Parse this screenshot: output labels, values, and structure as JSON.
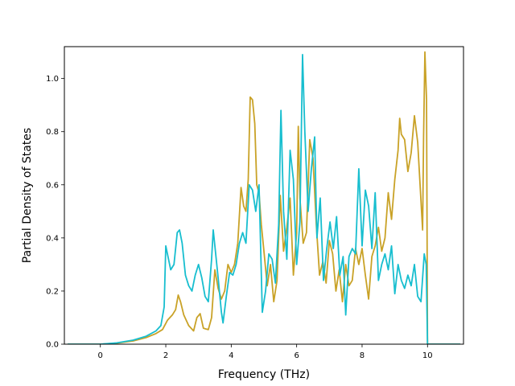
{
  "chart_data": {
    "type": "line",
    "title": "",
    "xlabel": "Frequency (THz)",
    "ylabel": "Partial Density of States",
    "xlim": [
      -1.1,
      11.1
    ],
    "ylim": [
      0.0,
      1.12
    ],
    "xticks": [
      0,
      2,
      4,
      6,
      8,
      10
    ],
    "yticks": [
      0.0,
      0.2,
      0.4,
      0.6,
      0.8,
      1.0
    ],
    "xtick_labels": [
      "0",
      "2",
      "4",
      "6",
      "8",
      "10"
    ],
    "ytick_labels": [
      "0.0",
      "0.2",
      "0.4",
      "0.6",
      "0.8",
      "1.0"
    ],
    "grid": false,
    "legend": "none",
    "series": [
      {
        "color": "#c9a227",
        "points": [
          [
            -1.0,
            0.0
          ],
          [
            0.0,
            0.0
          ],
          [
            0.5,
            0.004
          ],
          [
            1.0,
            0.012
          ],
          [
            1.4,
            0.025
          ],
          [
            1.7,
            0.04
          ],
          [
            1.9,
            0.055
          ],
          [
            2.05,
            0.09
          ],
          [
            2.2,
            0.11
          ],
          [
            2.3,
            0.13
          ],
          [
            2.38,
            0.185
          ],
          [
            2.45,
            0.16
          ],
          [
            2.55,
            0.11
          ],
          [
            2.7,
            0.07
          ],
          [
            2.85,
            0.05
          ],
          [
            2.95,
            0.1
          ],
          [
            3.05,
            0.115
          ],
          [
            3.15,
            0.06
          ],
          [
            3.3,
            0.055
          ],
          [
            3.4,
            0.1
          ],
          [
            3.5,
            0.28
          ],
          [
            3.6,
            0.21
          ],
          [
            3.7,
            0.17
          ],
          [
            3.8,
            0.2
          ],
          [
            3.9,
            0.3
          ],
          [
            4.0,
            0.27
          ],
          [
            4.1,
            0.3
          ],
          [
            4.2,
            0.38
          ],
          [
            4.3,
            0.59
          ],
          [
            4.38,
            0.52
          ],
          [
            4.45,
            0.5
          ],
          [
            4.52,
            0.62
          ],
          [
            4.58,
            0.93
          ],
          [
            4.65,
            0.92
          ],
          [
            4.72,
            0.83
          ],
          [
            4.78,
            0.6
          ],
          [
            4.85,
            0.57
          ],
          [
            4.92,
            0.45
          ],
          [
            5.0,
            0.35
          ],
          [
            5.1,
            0.22
          ],
          [
            5.2,
            0.3
          ],
          [
            5.3,
            0.16
          ],
          [
            5.4,
            0.24
          ],
          [
            5.5,
            0.56
          ],
          [
            5.6,
            0.35
          ],
          [
            5.7,
            0.44
          ],
          [
            5.8,
            0.55
          ],
          [
            5.9,
            0.26
          ],
          [
            6.0,
            0.42
          ],
          [
            6.05,
            0.82
          ],
          [
            6.1,
            0.55
          ],
          [
            6.2,
            0.38
          ],
          [
            6.3,
            0.42
          ],
          [
            6.4,
            0.77
          ],
          [
            6.5,
            0.7
          ],
          [
            6.6,
            0.45
          ],
          [
            6.7,
            0.26
          ],
          [
            6.8,
            0.31
          ],
          [
            6.9,
            0.23
          ],
          [
            7.0,
            0.39
          ],
          [
            7.1,
            0.34
          ],
          [
            7.2,
            0.2
          ],
          [
            7.3,
            0.28
          ],
          [
            7.4,
            0.16
          ],
          [
            7.5,
            0.3
          ],
          [
            7.6,
            0.22
          ],
          [
            7.7,
            0.24
          ],
          [
            7.8,
            0.36
          ],
          [
            7.9,
            0.3
          ],
          [
            8.0,
            0.36
          ],
          [
            8.1,
            0.26
          ],
          [
            8.2,
            0.17
          ],
          [
            8.3,
            0.33
          ],
          [
            8.4,
            0.37
          ],
          [
            8.5,
            0.44
          ],
          [
            8.6,
            0.35
          ],
          [
            8.7,
            0.4
          ],
          [
            8.8,
            0.57
          ],
          [
            8.9,
            0.47
          ],
          [
            9.0,
            0.62
          ],
          [
            9.1,
            0.73
          ],
          [
            9.15,
            0.85
          ],
          [
            9.2,
            0.79
          ],
          [
            9.3,
            0.77
          ],
          [
            9.4,
            0.65
          ],
          [
            9.5,
            0.72
          ],
          [
            9.6,
            0.86
          ],
          [
            9.7,
            0.76
          ],
          [
            9.8,
            0.54
          ],
          [
            9.85,
            0.43
          ],
          [
            9.88,
            0.78
          ],
          [
            9.92,
            1.1
          ],
          [
            9.97,
            0.92
          ],
          [
            10.0,
            0.0
          ],
          [
            10.2,
            0.0
          ],
          [
            11.0,
            0.0
          ]
        ]
      },
      {
        "color": "#17becf",
        "points": [
          [
            -1.0,
            0.0
          ],
          [
            0.0,
            0.0
          ],
          [
            0.5,
            0.005
          ],
          [
            1.0,
            0.015
          ],
          [
            1.4,
            0.03
          ],
          [
            1.7,
            0.05
          ],
          [
            1.85,
            0.07
          ],
          [
            1.95,
            0.14
          ],
          [
            2.0,
            0.37
          ],
          [
            2.05,
            0.34
          ],
          [
            2.15,
            0.28
          ],
          [
            2.25,
            0.3
          ],
          [
            2.35,
            0.42
          ],
          [
            2.42,
            0.43
          ],
          [
            2.5,
            0.38
          ],
          [
            2.6,
            0.26
          ],
          [
            2.7,
            0.22
          ],
          [
            2.8,
            0.2
          ],
          [
            2.9,
            0.26
          ],
          [
            3.0,
            0.3
          ],
          [
            3.1,
            0.25
          ],
          [
            3.2,
            0.18
          ],
          [
            3.3,
            0.16
          ],
          [
            3.4,
            0.32
          ],
          [
            3.45,
            0.43
          ],
          [
            3.5,
            0.37
          ],
          [
            3.6,
            0.25
          ],
          [
            3.7,
            0.12
          ],
          [
            3.75,
            0.08
          ],
          [
            3.85,
            0.18
          ],
          [
            3.95,
            0.27
          ],
          [
            4.05,
            0.26
          ],
          [
            4.15,
            0.3
          ],
          [
            4.25,
            0.38
          ],
          [
            4.35,
            0.42
          ],
          [
            4.45,
            0.38
          ],
          [
            4.55,
            0.6
          ],
          [
            4.65,
            0.58
          ],
          [
            4.75,
            0.5
          ],
          [
            4.85,
            0.6
          ],
          [
            4.95,
            0.12
          ],
          [
            5.05,
            0.2
          ],
          [
            5.15,
            0.34
          ],
          [
            5.25,
            0.32
          ],
          [
            5.35,
            0.23
          ],
          [
            5.45,
            0.45
          ],
          [
            5.52,
            0.88
          ],
          [
            5.6,
            0.5
          ],
          [
            5.7,
            0.32
          ],
          [
            5.8,
            0.73
          ],
          [
            5.9,
            0.62
          ],
          [
            6.0,
            0.3
          ],
          [
            6.1,
            0.46
          ],
          [
            6.18,
            1.09
          ],
          [
            6.25,
            0.8
          ],
          [
            6.35,
            0.5
          ],
          [
            6.45,
            0.66
          ],
          [
            6.55,
            0.78
          ],
          [
            6.62,
            0.4
          ],
          [
            6.72,
            0.55
          ],
          [
            6.82,
            0.24
          ],
          [
            6.92,
            0.36
          ],
          [
            7.02,
            0.46
          ],
          [
            7.12,
            0.36
          ],
          [
            7.22,
            0.48
          ],
          [
            7.32,
            0.26
          ],
          [
            7.42,
            0.33
          ],
          [
            7.5,
            0.11
          ],
          [
            7.6,
            0.33
          ],
          [
            7.7,
            0.36
          ],
          [
            7.8,
            0.34
          ],
          [
            7.9,
            0.66
          ],
          [
            8.0,
            0.37
          ],
          [
            8.1,
            0.58
          ],
          [
            8.2,
            0.52
          ],
          [
            8.3,
            0.36
          ],
          [
            8.4,
            0.57
          ],
          [
            8.5,
            0.24
          ],
          [
            8.6,
            0.3
          ],
          [
            8.7,
            0.34
          ],
          [
            8.8,
            0.28
          ],
          [
            8.9,
            0.37
          ],
          [
            9.0,
            0.19
          ],
          [
            9.1,
            0.3
          ],
          [
            9.2,
            0.24
          ],
          [
            9.3,
            0.21
          ],
          [
            9.4,
            0.26
          ],
          [
            9.5,
            0.22
          ],
          [
            9.6,
            0.3
          ],
          [
            9.7,
            0.18
          ],
          [
            9.8,
            0.16
          ],
          [
            9.9,
            0.34
          ],
          [
            9.96,
            0.3
          ],
          [
            10.0,
            0.0
          ],
          [
            10.2,
            0.0
          ],
          [
            11.0,
            0.0
          ]
        ]
      }
    ]
  }
}
